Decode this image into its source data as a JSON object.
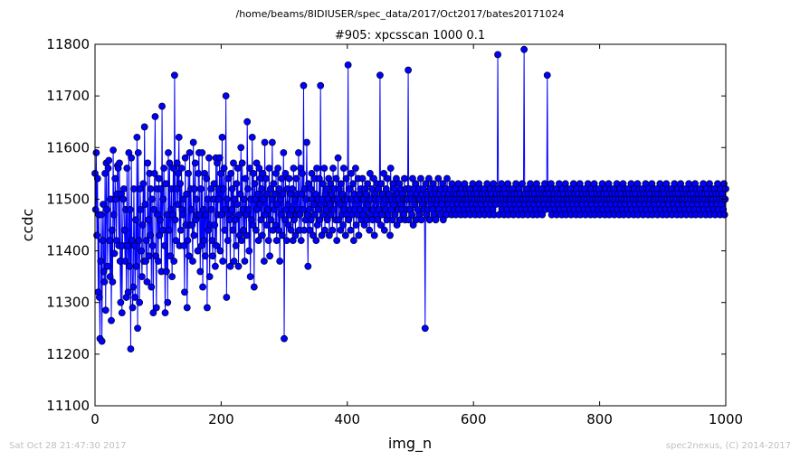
{
  "header": {
    "path": "/home/beams/8IDIUSER/spec_data/2017/Oct2017/bates20171024"
  },
  "footer": {
    "timestamp": "Sat Oct 28 21:47:30 2017",
    "credit": "spec2nexus, (C) 2014-2017"
  },
  "chart_data": {
    "type": "line",
    "title": "#905: xpcsscan 1000 0.1",
    "xlabel": "img_n",
    "ylabel": "ccdc",
    "xlim": [
      0,
      1000
    ],
    "ylim": [
      11100,
      11800
    ],
    "xticks": [
      0,
      200,
      400,
      600,
      800,
      1000
    ],
    "yticks": [
      11100,
      11200,
      11300,
      11400,
      11500,
      11600,
      11700,
      11800
    ],
    "grid": false,
    "markers": true,
    "series_color": "#0000ff",
    "series": [
      {
        "values": [
          11550,
          11480,
          11590,
          11430,
          11540,
          11320,
          11470,
          11310,
          11230,
          11380,
          11470,
          11225,
          11420,
          11490,
          11360,
          11340,
          11550,
          11285,
          11570,
          11480,
          11370,
          11560,
          11575,
          11420,
          11350,
          11500,
          11265,
          11440,
          11340,
          11595,
          11470,
          11395,
          11540,
          11500,
          11420,
          11510,
          11565,
          11560,
          11410,
          11570,
          11380,
          11300,
          11510,
          11280,
          11410,
          11500,
          11520,
          11440,
          11380,
          11480,
          11310,
          11560,
          11410,
          11320,
          11590,
          11370,
          11480,
          11210,
          11580,
          11420,
          11290,
          11330,
          11520,
          11410,
          11310,
          11460,
          11370,
          11620,
          11250,
          11590,
          11420,
          11300,
          11520,
          11480,
          11400,
          11350,
          11450,
          11530,
          11380,
          11640,
          11490,
          11380,
          11420,
          11340,
          11570,
          11460,
          11390,
          11550,
          11430,
          11520,
          11330,
          11500,
          11410,
          11280,
          11480,
          11550,
          11660,
          11390,
          11290,
          11520,
          11470,
          11380,
          11540,
          11430,
          11460,
          11520,
          11360,
          11680,
          11440,
          11500,
          11560,
          11410,
          11280,
          11530,
          11360,
          11470,
          11300,
          11590,
          11440,
          11570,
          11390,
          11480,
          11520,
          11350,
          11470,
          11560,
          11380,
          11740,
          11460,
          11420,
          11520,
          11570,
          11490,
          11550,
          11620,
          11410,
          11530,
          11440,
          11560,
          11480,
          11470,
          11500,
          11410,
          11320,
          11580,
          11450,
          11510,
          11290,
          11420,
          11550,
          11390,
          11590,
          11450,
          11520,
          11480,
          11450,
          11380,
          11610,
          11430,
          11520,
          11570,
          11460,
          11500,
          11470,
          11400,
          11550,
          11590,
          11470,
          11360,
          11520,
          11410,
          11590,
          11330,
          11480,
          11420,
          11550,
          11390,
          11470,
          11540,
          11290,
          11500,
          11440,
          11580,
          11350,
          11450,
          11520,
          11480,
          11420,
          11390,
          11500,
          11530,
          11450,
          11370,
          11580,
          11410,
          11570,
          11470,
          11520,
          11500,
          11580,
          11400,
          11550,
          11470,
          11620,
          11380,
          11520,
          11560,
          11440,
          11480,
          11700,
          11310,
          11500,
          11420,
          11540,
          11470,
          11460,
          11370,
          11550,
          11480,
          11520,
          11440,
          11570,
          11380,
          11500,
          11460,
          11410,
          11530,
          11490,
          11560,
          11370,
          11470,
          11430,
          11510,
          11600,
          11420,
          11570,
          11480,
          11440,
          11500,
          11380,
          11540,
          11470,
          11430,
          11650,
          11520,
          11480,
          11400,
          11560,
          11350,
          11500,
          11460,
          11620,
          11450,
          11550,
          11330,
          11530,
          11500,
          11440,
          11570,
          11480,
          11510,
          11420,
          11560,
          11490,
          11540,
          11460,
          11520,
          11430,
          11550,
          11500,
          11380,
          11610,
          11470,
          11540,
          11450,
          11510,
          11480,
          11420,
          11560,
          11390,
          11520,
          11460,
          11500,
          11610,
          11440,
          11530,
          11480,
          11510,
          11450,
          11550,
          11420,
          11490,
          11560,
          11440,
          11520,
          11380,
          11500,
          11470,
          11540,
          11430,
          11510,
          11590,
          11230,
          11460,
          11550,
          11480,
          11420,
          11520,
          11490,
          11450,
          11540,
          11470,
          11510,
          11440,
          11480,
          11520,
          11420,
          11560,
          11460,
          11500,
          11430,
          11540,
          11470,
          11510,
          11480,
          11590,
          11440,
          11470,
          11560,
          11420,
          11510,
          11550,
          11480,
          11720,
          11440,
          11520,
          11460,
          11500,
          11610,
          11470,
          11370,
          11530,
          11480,
          11440,
          11520,
          11460,
          11550,
          11500,
          11430,
          11490,
          11540,
          11470,
          11510,
          11420,
          11560,
          11450,
          11500,
          11480,
          11540,
          11460,
          11720,
          11490,
          11430,
          11500,
          11530,
          11470,
          11560,
          11440,
          11510,
          11480,
          11520,
          11460,
          11500,
          11540,
          11430,
          11490,
          11530,
          11470,
          11510,
          11440,
          11560,
          11480,
          11520,
          11500,
          11460,
          11540,
          11420,
          11500,
          11580,
          11460,
          11520,
          11490,
          11440,
          11530,
          11470,
          11510,
          11450,
          11560,
          11480,
          11500,
          11430,
          11540,
          11470,
          11500,
          11760,
          11460,
          11520,
          11480,
          11440,
          11550,
          11500,
          11470,
          11530,
          11420,
          11510,
          11480,
          11560,
          11450,
          11500,
          11470,
          11540,
          11430,
          11510,
          11480,
          11520,
          11460,
          11500,
          11540,
          11470,
          11500,
          11450,
          11520,
          11480,
          11510,
          11460,
          11530,
          11490,
          11500,
          11440,
          11550,
          11470,
          11500,
          11520,
          11460,
          11480,
          11540,
          11430,
          11510,
          11500,
          11470,
          11530,
          11460,
          11520,
          11480,
          11500,
          11740,
          11450,
          11530,
          11470,
          11510,
          11490,
          11550,
          11440,
          11500,
          11480,
          11520,
          11460,
          11540,
          11470,
          11500,
          11510,
          11430,
          11560,
          11480,
          11500,
          11460,
          11530,
          11490,
          11520,
          11470,
          11500,
          11540,
          11450,
          11510,
          11480,
          11500,
          11530,
          11460,
          11520,
          11490,
          11480,
          11510,
          11500,
          11470,
          11540,
          11460,
          11500,
          11520,
          11480,
          11500,
          11750,
          11460,
          11520,
          11480,
          11510,
          11500,
          11470,
          11540,
          11450,
          11520,
          11490,
          11500,
          11530,
          11460,
          11510,
          11480,
          11500,
          11520,
          11470,
          11500,
          11540,
          11460,
          11510,
          11490,
          11520,
          11480,
          11500,
          11250,
          11530,
          11470,
          11510,
          11500,
          11480,
          11540,
          11460,
          11520,
          11490,
          11500,
          11510,
          11480,
          11530,
          11470,
          11500,
          11520,
          11460,
          11510,
          11490,
          11500,
          11540,
          11480,
          11510,
          11470,
          11520,
          11500,
          11490,
          11530,
          11460,
          11510,
          11500,
          11480,
          11520,
          11470,
          11540,
          11500,
          11490,
          11510,
          11480,
          11520,
          11500,
          11470,
          11530,
          11490,
          11510,
          11500,
          11480,
          11520,
          11470,
          11510,
          11500,
          11490,
          11530,
          11480,
          11510,
          11500,
          11470,
          11520,
          11490,
          11510,
          11500,
          11480,
          11530,
          11470,
          11500,
          11520,
          11490,
          11510,
          11500,
          11480,
          11520,
          11470,
          11510,
          11500,
          11490,
          11530,
          11480,
          11510,
          11500,
          11470,
          11520,
          11490,
          11510,
          11500,
          11480,
          11530,
          11470,
          11500,
          11520,
          11490,
          11510,
          11500,
          11480,
          11520,
          11470,
          11510,
          11500,
          11490,
          11530,
          11480,
          11510,
          11500,
          11470,
          11520,
          11490,
          11510,
          11500,
          11480,
          11530,
          11470,
          11500,
          11520,
          11490,
          11510,
          11500,
          11780,
          11520,
          11470,
          11510,
          11500,
          11490,
          11530,
          11480,
          11510,
          11500,
          11470,
          11520,
          11490,
          11510,
          11500,
          11480,
          11530,
          11470,
          11500,
          11520,
          11490,
          11510,
          11500,
          11480,
          11520,
          11470,
          11510,
          11500,
          11490,
          11530,
          11480,
          11510,
          11500,
          11470,
          11520,
          11490,
          11510,
          11500,
          11480,
          11530,
          11470,
          11500,
          11790,
          11490,
          11510,
          11500,
          11480,
          11520,
          11470,
          11510,
          11500,
          11490,
          11530,
          11480,
          11510,
          11500,
          11470,
          11520,
          11490,
          11510,
          11500,
          11480,
          11530,
          11470,
          11500,
          11520,
          11490,
          11510,
          11500,
          11480,
          11520,
          11470,
          11510,
          11500,
          11490,
          11530,
          11480,
          11510,
          11500,
          11740,
          11520,
          11490,
          11510,
          11500,
          11480,
          11530,
          11470,
          11500,
          11520,
          11490,
          11510,
          11500,
          11480,
          11520,
          11470,
          11510,
          11500,
          11490,
          11530,
          11480,
          11510,
          11500,
          11470,
          11520,
          11490,
          11510,
          11500,
          11480,
          11530,
          11470,
          11500,
          11520,
          11490,
          11510,
          11500,
          11480,
          11520,
          11470,
          11510,
          11500,
          11490,
          11530,
          11480,
          11510,
          11500,
          11470,
          11520,
          11490,
          11510,
          11500,
          11480,
          11530,
          11470,
          11500,
          11520,
          11490,
          11510,
          11500,
          11480,
          11520,
          11470,
          11510,
          11500,
          11490,
          11530,
          11480,
          11510,
          11500,
          11470,
          11520,
          11490,
          11510,
          11500,
          11480,
          11530,
          11470,
          11500,
          11520,
          11490,
          11510,
          11500,
          11480,
          11520,
          11470,
          11510,
          11500,
          11490,
          11530,
          11480,
          11510,
          11500,
          11470,
          11520,
          11490,
          11510,
          11500,
          11480,
          11530,
          11470,
          11500,
          11520,
          11490,
          11510,
          11500,
          11480,
          11520,
          11470,
          11510,
          11500,
          11490,
          11530,
          11480,
          11510,
          11500,
          11470,
          11520,
          11490,
          11510,
          11500,
          11480,
          11530,
          11470,
          11500,
          11520,
          11490,
          11510,
          11500,
          11480,
          11520,
          11470,
          11510,
          11500,
          11490,
          11530,
          11480,
          11510,
          11500,
          11470,
          11520,
          11490,
          11510,
          11500,
          11480,
          11530,
          11470,
          11500,
          11520,
          11490,
          11510,
          11500,
          11480,
          11520,
          11470,
          11510,
          11500,
          11490,
          11530,
          11480,
          11510,
          11500,
          11470,
          11520,
          11490,
          11510,
          11500,
          11480,
          11530,
          11470,
          11500,
          11520,
          11490,
          11510,
          11500,
          11480,
          11520,
          11470,
          11510,
          11500,
          11490,
          11530,
          11480,
          11510,
          11500,
          11470,
          11520,
          11490,
          11510,
          11500,
          11480,
          11530,
          11470,
          11500,
          11520,
          11490,
          11510,
          11500,
          11480,
          11520,
          11470,
          11510,
          11500,
          11490,
          11530,
          11480,
          11510,
          11500,
          11470,
          11520,
          11490,
          11510,
          11500,
          11480,
          11530,
          11470,
          11500,
          11520,
          11490,
          11510,
          11500,
          11480,
          11520,
          11470,
          11510,
          11500,
          11490,
          11530,
          11480,
          11510,
          11500,
          11470,
          11520,
          11490,
          11510,
          11500,
          11480,
          11530,
          11470,
          11500,
          11520,
          11490,
          11510,
          11500,
          11480,
          11520,
          11470,
          11510,
          11500,
          11490,
          11530,
          11480,
          11510,
          11500,
          11470,
          11520,
          11490,
          11510,
          11500,
          11480,
          11530,
          11470,
          11500,
          11520,
          11490,
          11510,
          11500,
          11480,
          11520,
          11470,
          11510,
          11500,
          11490,
          11530,
          11480,
          11510,
          11500,
          11470,
          11520,
          11490,
          11510,
          11500,
          11480,
          11530,
          11470,
          11500,
          11520
        ]
      }
    ]
  }
}
